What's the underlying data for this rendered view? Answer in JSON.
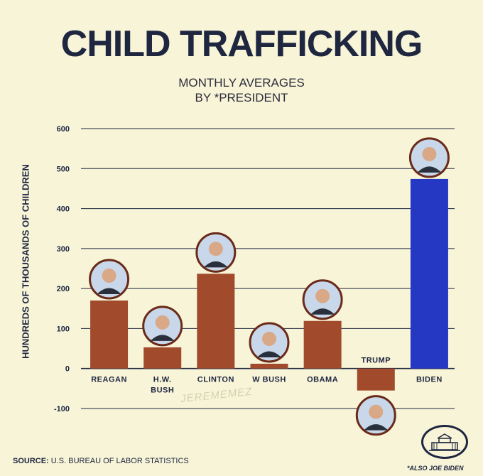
{
  "header": {
    "title": "CHILD TRAFFICKING",
    "subtitle_line1": "MONTHLY AVERAGES",
    "subtitle_line2": "BY *PRESIDENT"
  },
  "footer": {
    "source_label": "Source:",
    "source_text": "U.S. Bureau of Labor Statistics",
    "note": "*ALSO JOE BIDEN",
    "watermark": "JEREMEMEZ"
  },
  "colors": {
    "bar_default": "#a24a2c",
    "bar_highlight": "#2438c4",
    "background": "#f8f4d8",
    "text": "#1e2640",
    "grid": "#1e2640"
  },
  "chart_data": {
    "type": "bar",
    "title": "CHILD TRAFFICKING",
    "subtitle": "MONTHLY AVERAGES BY *PRESIDENT",
    "xlabel": "",
    "ylabel": "HUNDREDS OF THOUSANDS OF CHILDREN",
    "ylim": [
      -100,
      600
    ],
    "yticks": [
      -100,
      0,
      100,
      200,
      300,
      400,
      500,
      600
    ],
    "grid": true,
    "categories": [
      {
        "label": "REAGAN",
        "label_line2": ""
      },
      {
        "label": "H.W.",
        "label_line2": "BUSH"
      },
      {
        "label": "CLINTON",
        "label_line2": ""
      },
      {
        "label": "W BUSH",
        "label_line2": ""
      },
      {
        "label": "OBAMA",
        "label_line2": ""
      },
      {
        "label": "TRUMP",
        "label_line2": ""
      },
      {
        "label": "BIDEN",
        "label_line2": ""
      }
    ],
    "values": [
      170,
      53,
      237,
      12,
      119,
      -55,
      474
    ],
    "highlight_index": 6
  }
}
